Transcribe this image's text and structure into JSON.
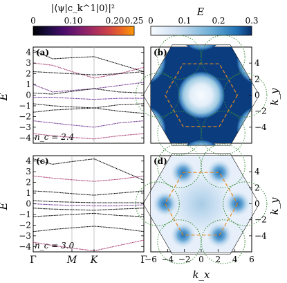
{
  "colorbar_left": {
    "label": "|⟨ψ|c_k^1|0⟩|²",
    "ticks": [
      "0",
      "0.10",
      "0.20",
      "0.25"
    ],
    "range": [
      0,
      0.25
    ],
    "colormap": "inferno"
  },
  "colorbar_right": {
    "label": "E",
    "ticks": [
      "0",
      "0.1",
      "0.2",
      "0.3"
    ],
    "range": [
      0,
      0.3
    ],
    "colormap": "Blues"
  },
  "chart_data": [
    {
      "type": "line",
      "panel_label": "(a)",
      "annotation": "n_c = 2.4",
      "ylabel": "E",
      "ylim": [
        -4.5,
        4.5
      ],
      "y_ticks": [
        "−4",
        "−3",
        "−2",
        "−1",
        "0",
        "1",
        "2",
        "3",
        "4"
      ],
      "x_ticks": [
        "Γ",
        "M",
        "K",
        "Γ"
      ],
      "series": [
        {
          "color": "#000000",
          "values": [
            4.2,
            3.4,
            3.6,
            2.9,
            2.2
          ]
        },
        {
          "color": "#a4316a",
          "values": [
            3.0,
            2.8,
            1.6,
            2.0,
            2.6
          ]
        },
        {
          "color": "#000000",
          "values": [
            2.2,
            2.1,
            1.9,
            2.0,
            2.2
          ]
        },
        {
          "color": "#6b2a8e",
          "values": [
            1.0,
            0.3,
            0.6,
            0.9,
            1.2
          ]
        },
        {
          "color": "#000000",
          "values": [
            0.2,
            0.1,
            0.6,
            0.3,
            0.2
          ]
        },
        {
          "color": "#6b2a8e",
          "values": [
            -0.2,
            -0.2,
            -0.4,
            -0.3,
            -0.3
          ]
        },
        {
          "color": "#000000",
          "values": [
            -0.8,
            -1.0,
            -1.2,
            -0.9,
            -0.8
          ]
        },
        {
          "color": "#000000",
          "values": [
            -1.6,
            -1.4,
            -1.2,
            -1.5,
            -1.7
          ]
        },
        {
          "color": "#6b2a8e",
          "values": [
            -2.4,
            -2.6,
            -3.0,
            -2.6,
            -2.4
          ]
        },
        {
          "color": "#a4316a",
          "values": [
            -3.6,
            -3.8,
            -4.1,
            -3.8,
            -3.6
          ]
        }
      ]
    },
    {
      "type": "line",
      "panel_label": "(c)",
      "annotation": "n_c = 3.0",
      "ylabel": "E",
      "ylim": [
        -4.5,
        4.5
      ],
      "y_ticks": [
        "−4",
        "−3",
        "−2",
        "−1",
        "0",
        "1",
        "2",
        "3",
        "4"
      ],
      "x_ticks": [
        "Γ",
        "M",
        "K",
        "Γ"
      ],
      "series": [
        {
          "color": "#000000",
          "values": [
            4.2,
            3.7,
            4.2,
            3.2,
            2.2
          ]
        },
        {
          "color": "#a4316a",
          "values": [
            2.6,
            2.4,
            2.1,
            2.3,
            2.6
          ]
        },
        {
          "color": "#000000",
          "values": [
            1.2,
            1.1,
            0.8,
            1.0,
            1.2
          ]
        },
        {
          "color": "#000000",
          "values": [
            0.3,
            0.2,
            0.1,
            0.1,
            0.1
          ]
        },
        {
          "color": "#6b2a8e",
          "values": [
            0.0,
            -0.1,
            -0.2,
            -0.2,
            -0.1
          ]
        },
        {
          "color": "#000000",
          "values": [
            -0.4,
            -0.5,
            -0.6,
            -0.5,
            -0.4
          ]
        },
        {
          "color": "#000000",
          "values": [
            -1.2,
            -1.1,
            -0.9,
            -1.1,
            -1.2
          ]
        },
        {
          "color": "#000000",
          "values": [
            -2.6,
            -2.4,
            -2.1,
            -2.3,
            -2.6
          ]
        },
        {
          "color": "#a4316a",
          "values": [
            -3.6,
            -3.9,
            -4.4,
            -3.9,
            -3.4
          ]
        }
      ]
    },
    {
      "type": "heatmap",
      "panel_label": "(b)",
      "xlim": [
        -6,
        6
      ],
      "ylim": [
        -6,
        6
      ],
      "y_ticks": [
        "4",
        "2",
        "0",
        "−2",
        "−4"
      ],
      "ylabel": "k_y"
    },
    {
      "type": "heatmap",
      "panel_label": "(d)",
      "xlabel": "k_x",
      "xlim": [
        -6,
        6
      ],
      "ylim": [
        -6,
        6
      ],
      "x_ticks": [
        "−6",
        "−4",
        "−2",
        "0",
        "2",
        "4",
        "6"
      ],
      "y_ticks": [
        "4",
        "2",
        "0",
        "−2",
        "−4"
      ],
      "ylabel": "k_y"
    }
  ]
}
